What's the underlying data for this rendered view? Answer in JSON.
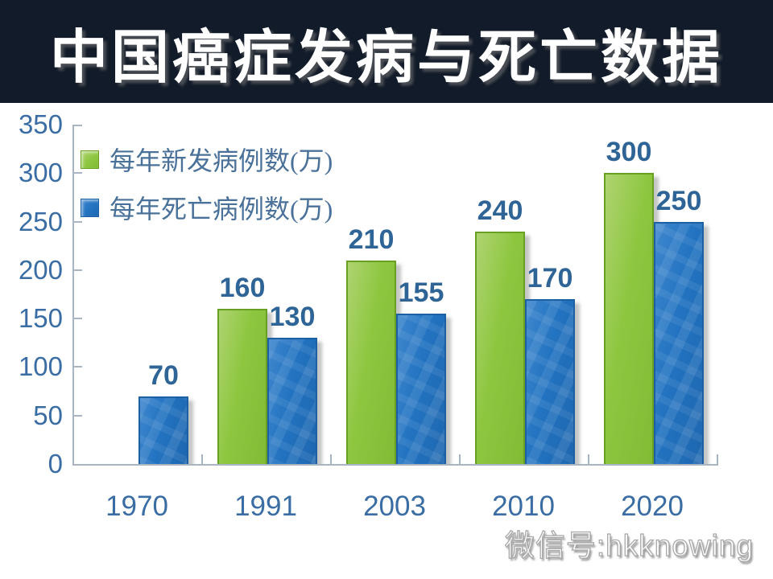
{
  "header": {
    "title": "中国癌症发病与死亡数据",
    "bg_color": "#121b29"
  },
  "chart_data": {
    "type": "bar",
    "title": "中国癌症发病与死亡数据",
    "categories": [
      "1970",
      "1991",
      "2003",
      "2010",
      "2020"
    ],
    "series": [
      {
        "name": "每年新发病例数(万)",
        "values": [
          null,
          160,
          210,
          240,
          300
        ],
        "color": "#8dc63f",
        "color_light": "#aed471",
        "color_dark": "#82bc35",
        "border_color": "#69a023"
      },
      {
        "name": "每年死亡病例数(万)",
        "values": [
          70,
          130,
          155,
          170,
          250
        ],
        "color": "#2273c1",
        "color_light": "#3f87cd",
        "color_dark": "#1e67af",
        "border_color": "#1c5fa3"
      }
    ],
    "xlabel": "",
    "ylabel": "",
    "ylim": [
      0,
      350
    ],
    "yticks": [
      0,
      50,
      100,
      150,
      200,
      250,
      300,
      350
    ],
    "grid": false,
    "legend_position": "top-left",
    "value_labels": true,
    "axis_color": "#a9b5c2",
    "tick_label_color": "#3a6da3",
    "value_label_color": "#2e6496",
    "legend_text_color": "#4a7199"
  },
  "watermark": {
    "text": "微信号:hkknowing"
  }
}
